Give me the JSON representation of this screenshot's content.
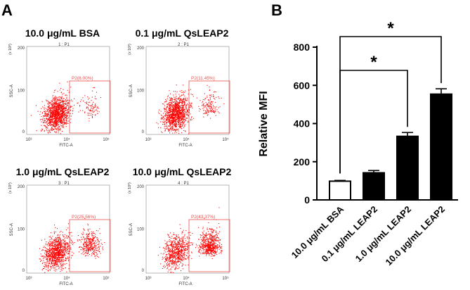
{
  "panel_a": {
    "letter": "A",
    "plots": [
      {
        "title": "10.0 μg/mL BSA",
        "sub_title": "1 : P1",
        "gate_label": "P2(8.00%)",
        "gate_percent": 8.0
      },
      {
        "title": "0.1 μg/mL QsLEAP2",
        "sub_title": "2 : P1",
        "gate_label": "P2(11.45%)",
        "gate_percent": 11.45
      },
      {
        "title": "1.0 μg/mL QsLEAP2",
        "sub_title": "3 : P1",
        "gate_label": "P2(25.56%)",
        "gate_percent": 25.56
      },
      {
        "title": "10.0 μg/mL QsLEAP2",
        "sub_title": "4 : P1",
        "gate_label": "P2(43.37%)",
        "gate_percent": 43.37
      }
    ],
    "y_axis_label": "SSC-A",
    "y_multiplier": "(x 10³)",
    "y_ticks": [
      "0",
      "100",
      "200"
    ],
    "x_axis_label": "FITC-A",
    "x_ticks": [
      "10³",
      "10⁴",
      "10⁵"
    ],
    "dot_color": "#ff0000",
    "gate_color": "#e8504a"
  },
  "panel_b": {
    "letter": "B",
    "significance_marks": [
      "*",
      "*"
    ],
    "comparisons": [
      {
        "from": 0,
        "to": 2,
        "label": "*"
      },
      {
        "from": 0,
        "to": 3,
        "label": "*"
      }
    ]
  },
  "chart_data": {
    "type": "bar",
    "categories": [
      "10.0 μg/mL BSA",
      "0.1 μg/mL LEAP2",
      "1.0 μg/mL LEAP2",
      "10.0 μg/mL LEAP2"
    ],
    "values": [
      98,
      142,
      333,
      554
    ],
    "errors": [
      4,
      12,
      20,
      28
    ],
    "bar_fills": [
      "#ffffff",
      "#000000",
      "#000000",
      "#000000"
    ],
    "title": "",
    "xlabel": "",
    "ylabel": "Relative MFI",
    "ylim": [
      0,
      800
    ],
    "yticks": [
      0,
      200,
      400,
      600,
      800
    ],
    "grid": false
  }
}
